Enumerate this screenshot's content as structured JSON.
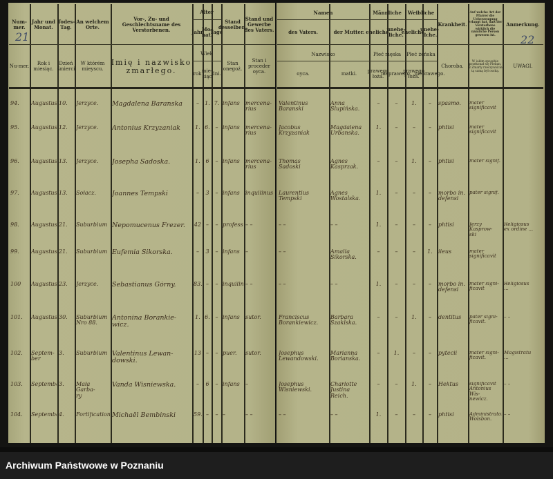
{
  "page_numbers": {
    "left": "21",
    "right": "22"
  },
  "headers_german": {
    "number": "Num-mer.",
    "year_month": "Jahr und Monat.",
    "death_day": "Todes-Tag.",
    "place": "An welchem Orte.",
    "name": "Vor-, Zu- und Geschlechtsname des Verstorbenen.",
    "age": "Alter",
    "age_years": "Jahr",
    "age_months": "Mo-nat.",
    "age_days": "Tage",
    "status": "Stand desselben.",
    "father_occupation": "Stand und Gewerbe des Vaters.",
    "names": "Namen",
    "father": "des Vaters.",
    "mother": "der Mutter.",
    "male": "Männliche",
    "female": "Weibliche",
    "legit": "eheliche.",
    "illegit": "unehe-liche.",
    "disease": "Krankheit.",
    "confirmation": "Auf welche Art der Pfarrer die Ueberzeugung erlangt hat, daß der Verstorbene wirklich die nämliche Person gewesen ist.",
    "remarks": "Anmerkung."
  },
  "headers_polish": {
    "number": "Nu-mer.",
    "year_month": "Rok i miesiąc.",
    "death_day": "Dzień śmierci",
    "place": "W którém mieyscu.",
    "name": "Imię i nazwisko zmarłego.",
    "age": "Wiek",
    "age_years": "rok",
    "age_months": "mie-siąc",
    "age_days": "dni.",
    "status": "Stan onegoż.",
    "father_occupation": "Stan i proceder oyca.",
    "names": "Nazwisko",
    "father": "oyca.",
    "mother": "matki.",
    "male": "Płeć męska",
    "female": "Płeć żeńska",
    "legit": "prawego łoża.",
    "illegit": "nieprawego.",
    "disease": "Choroba.",
    "confirmation": "W iakim sposobie przekonał się Pleban, iż Zmarły rzeczywiście tą samą był osobą.",
    "remarks": "UWAGI."
  },
  "rows": [
    {
      "num": "94.",
      "month": "Augustus",
      "day": "10.",
      "place": "Jerzyce.",
      "name": "Magdalena Baranska",
      "age_y": "–",
      "age_m": "1.",
      "age_d": "7.",
      "status": "infans",
      "father_occ": "mercena-\nrius",
      "father": "Valentinus\nBaranski",
      "mother": "Anna\nSlupińska.",
      "m_legit": "–",
      "m_illeg": "–",
      "f_legit": "1.",
      "f_illeg": "–",
      "disease": "spasmo.",
      "confirmation": "mater significavit",
      "remarks": ""
    },
    {
      "num": "95.",
      "month": "Augustus",
      "day": "12.",
      "place": "Jerzyce.",
      "name": "Antonius Krzyzaniak",
      "age_y": "1.",
      "age_m": "6.",
      "age_d": "–",
      "status": "infans",
      "father_occ": "mercena-\nrius",
      "father": "Jacobus\nKrzyzaniak",
      "mother": "Magdalena\nUrbanska.",
      "m_legit": "1.",
      "m_illeg": "–",
      "f_legit": "–",
      "f_illeg": "–",
      "disease": "phtisi",
      "confirmation": "mater significavit",
      "remarks": ""
    },
    {
      "num": "96.",
      "month": "Augustus",
      "day": "13.",
      "place": "Jerzyce.",
      "name": "Josepha Sadoska.",
      "age_y": "1.",
      "age_m": "6",
      "age_d": "–",
      "status": "infans",
      "father_occ": "mercena-\nrius",
      "father": "Thomas\nSadoski",
      "mother": "Agnes\nKasprzak.",
      "m_legit": "–",
      "m_illeg": "–",
      "f_legit": "1.",
      "f_illeg": "–",
      "disease": "phtisi",
      "confirmation": "mater signif.",
      "remarks": ""
    },
    {
      "num": "97.",
      "month": "Augustus",
      "day": "13.",
      "place": "Sołacz.",
      "name": "Joannes Tempski",
      "age_y": "–",
      "age_m": "3",
      "age_d": "–",
      "status": "infans",
      "father_occ": "inquilinus",
      "father": "Laurentius\nTempski",
      "mother": "Agnes\nWostalska.",
      "m_legit": "1.",
      "m_illeg": "–",
      "f_legit": "–",
      "f_illeg": "–",
      "disease": "morbo in.\ndefensi",
      "confirmation": "pater signif.",
      "remarks": ""
    },
    {
      "num": "98.",
      "month": "Augustus",
      "day": "21.",
      "place": "Suburbium",
      "name": "Nepomucenus Frezer.",
      "age_y": "42",
      "age_m": "–",
      "age_d": "–",
      "status": "professor",
      "father_occ": "–  –",
      "father": "–  –",
      "mother": "–  –",
      "m_legit": "1.",
      "m_illeg": "–",
      "f_legit": "–",
      "f_illeg": "–",
      "disease": "phtisi",
      "confirmation": "Jerzy Kasprow-\nski",
      "remarks": "Religiosus\nex ordine ..."
    },
    {
      "num": "99.",
      "month": "Augustus",
      "day": "21.",
      "place": "Suburbium",
      "name": "Eufemia Sikorska.",
      "age_y": "–",
      "age_m": "3",
      "age_d": "–",
      "status": "infans",
      "father_occ": "–",
      "father": "–  –",
      "mother": "Amalia\nSikorska.",
      "m_legit": "–",
      "m_illeg": "–",
      "f_legit": "–",
      "f_illeg": "1.",
      "disease": "ileus",
      "confirmation": "mater significavit",
      "remarks": ""
    },
    {
      "num": "100",
      "month": "Augustus",
      "day": "23.",
      "place": "Jerzyce.",
      "name": "Sebastianus Górny.",
      "age_y": "83.",
      "age_m": "–",
      "age_d": "–",
      "status": "inquilinus",
      "father_occ": "–  –",
      "father": "–  –",
      "mother": "–  –",
      "m_legit": "1.",
      "m_illeg": "–",
      "f_legit": "–",
      "f_illeg": "–",
      "disease": "morbo in.\ndefensi",
      "confirmation": "mater signi-\nficavit",
      "remarks": "Religiosus\n..."
    },
    {
      "num": "101.",
      "month": "Augustus",
      "day": "30.",
      "place": "Suburbium\nNro 88.",
      "name": "Antonina Borankie-\nwicz.",
      "age_y": "1.",
      "age_m": "6.",
      "age_d": "–",
      "status": "infans",
      "father_occ": "sutor.",
      "father": "Franciscus\nBorankiewicz.",
      "mother": "Barbara\nSzaklska.",
      "m_legit": "–",
      "m_illeg": "–",
      "f_legit": "1.",
      "f_illeg": "–",
      "disease": "dentitus",
      "confirmation": "pater signi-\nficavit.",
      "remarks": "–  –"
    },
    {
      "num": "102.",
      "month": "Septem-\nber",
      "day": "3.",
      "place": "Suburbium",
      "name": "Valentinus Lewan-\ndowski.",
      "age_y": "13",
      "age_m": "–",
      "age_d": "–",
      "status": "puer.",
      "father_occ": "sutor.",
      "father": "Josephus\nLewandowski.",
      "mother": "Marianna\nBorianska.",
      "m_legit": "–",
      "m_illeg": "1.",
      "f_legit": "–",
      "f_illeg": "–",
      "disease": "pytecii",
      "confirmation": "mater signi-\nficavit.",
      "remarks": "Magistratu\n..."
    },
    {
      "num": "103.",
      "month": "September",
      "day": "3.",
      "place": "Mała Garba-\nry",
      "name": "Vanda Wisniewska.",
      "age_y": "–",
      "age_m": "6",
      "age_d": "–",
      "status": "infans",
      "father_occ": "–",
      "father": "Josephus\nWisniewski.",
      "mother": "Charlotte\nJustina\nReich.",
      "m_legit": "–",
      "m_illeg": "–",
      "f_legit": "1.",
      "f_illeg": "–",
      "disease": "Hektus",
      "confirmation": "significavit\nAntonius Wis-\nnewicz.",
      "remarks": "–  –"
    },
    {
      "num": "104.",
      "month": "September",
      "day": "4.",
      "place": "Fortifications",
      "name": "Michaël Bembinski",
      "age_y": "59.",
      "age_m": "–",
      "age_d": "–",
      "status": "–",
      "father_occ": "–  –",
      "father": "–  –",
      "mother": "–  –",
      "m_legit": "1.",
      "m_illeg": "–",
      "f_legit": "–",
      "f_illeg": "–",
      "disease": "phtisi",
      "confirmation": "Administrator\nWolsbon.",
      "remarks": "–  –"
    }
  ],
  "footer": {
    "archive_name": "Archiwum Państwowe w Poznaniu"
  }
}
